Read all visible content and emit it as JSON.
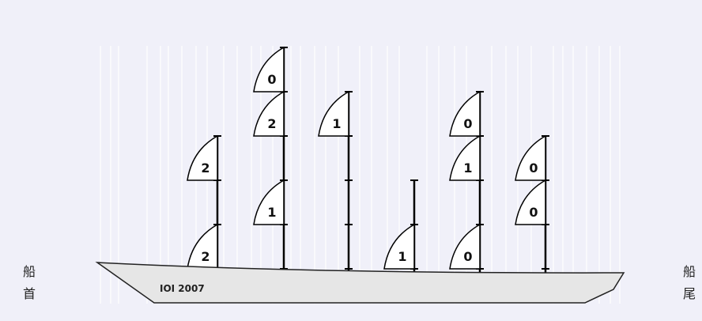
{
  "labels": {
    "bow_top": "船",
    "bow_bottom": "首",
    "stern_top": "船",
    "stern_bottom": "尾"
  },
  "hull_text": "IOI 2007",
  "colors": {
    "background": "#f0f0f9",
    "hull": "#e6e6e6",
    "sail": "#ffffff",
    "line": "#000000"
  },
  "masts": [
    {
      "height": 3,
      "sails": [
        {
          "level": 1,
          "value": "2"
        },
        {
          "level": 3,
          "value": "2"
        }
      ]
    },
    {
      "height": 5,
      "sails": [
        {
          "level": 2,
          "value": "1"
        },
        {
          "level": 4,
          "value": "2"
        },
        {
          "level": 5,
          "value": "0"
        }
      ]
    },
    {
      "height": 4,
      "sails": [
        {
          "level": 4,
          "value": "1"
        }
      ]
    },
    {
      "height": 2,
      "sails": [
        {
          "level": 1,
          "value": "1"
        }
      ]
    },
    {
      "height": 4,
      "sails": [
        {
          "level": 1,
          "value": "0"
        },
        {
          "level": 3,
          "value": "1"
        },
        {
          "level": 4,
          "value": "0"
        }
      ]
    },
    {
      "height": 3,
      "sails": [
        {
          "level": 2,
          "value": "0"
        },
        {
          "level": 3,
          "value": "0"
        }
      ]
    }
  ]
}
